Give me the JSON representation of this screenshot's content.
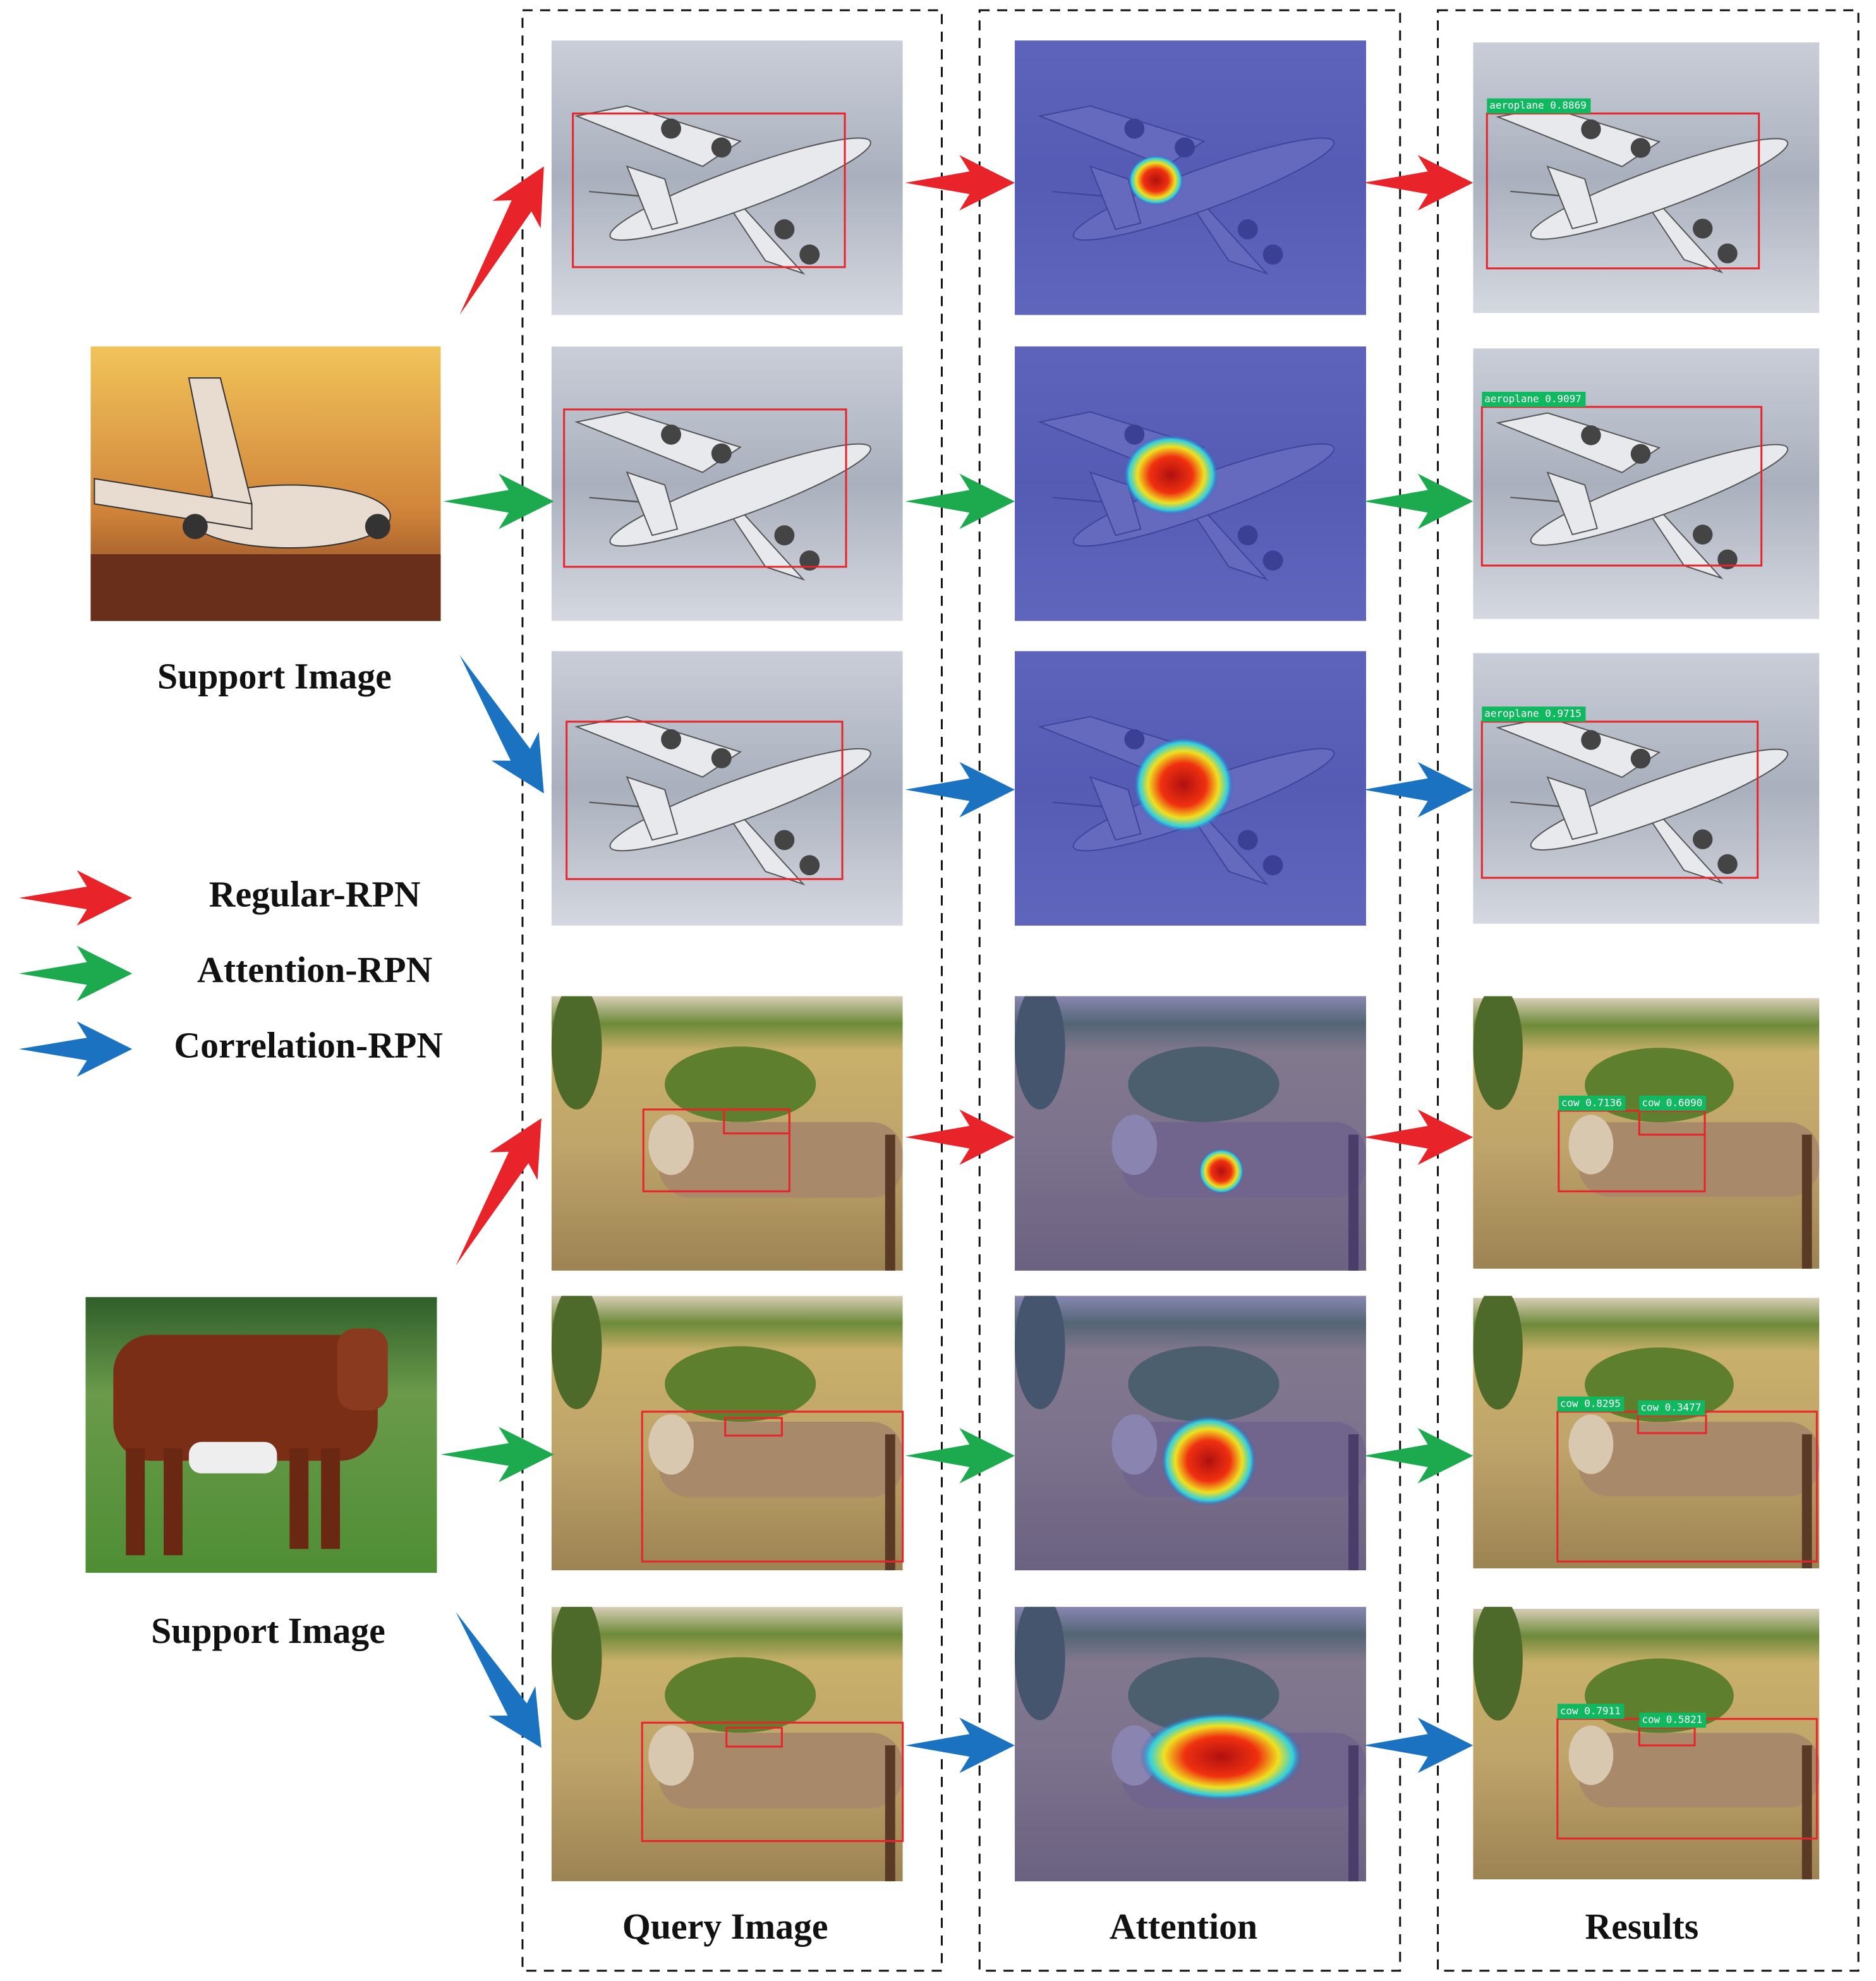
{
  "support_images": [
    "Support Image",
    "Support Image"
  ],
  "legend": [
    "Regular-RPN",
    "Attention-RPN",
    "Correlation-RPN"
  ],
  "columns": [
    "Query Image",
    "Attention",
    "Results"
  ],
  "detections": [
    [
      "aeroplane 0.8869"
    ],
    [
      "aeroplane 0.9097"
    ],
    [
      "aeroplane 0.9715"
    ],
    [
      "cow 0.7136",
      "cow 0.6090"
    ],
    [
      "cow 0.8295",
      "cow 0.3477"
    ],
    [
      "cow 0.7911",
      "cow 0.5821"
    ]
  ]
}
